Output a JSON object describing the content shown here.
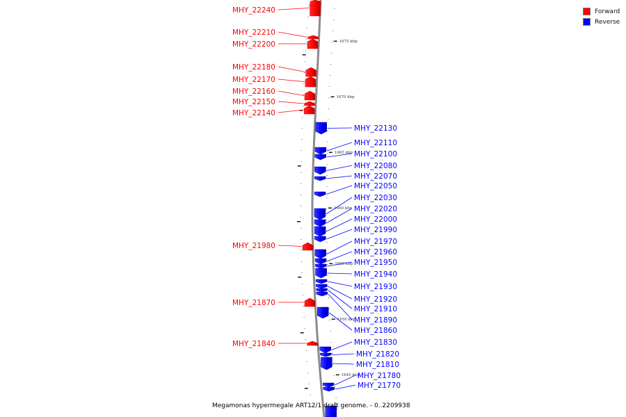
{
  "legend": {
    "items": [
      {
        "label": "Forward",
        "color": "#ff0000"
      },
      {
        "label": "Reverse",
        "color": "#0000ff"
      }
    ]
  },
  "caption": "Megamonas hypermegale ART12/1 draft genome. - 0..2209938",
  "colors": {
    "forward": "#ff0000",
    "reverse": "#0000ff",
    "backbone": "#777777"
  },
  "ticks": [
    "1675 kbp",
    "1670 kbp",
    "1665 kbp",
    "1660 kbp",
    "1655 kbp",
    "1650 kbp",
    "1645 kbp"
  ],
  "genes": [
    {
      "id": "MHY_22240",
      "strand": "forward"
    },
    {
      "id": "MHY_22210",
      "strand": "forward"
    },
    {
      "id": "MHY_22200",
      "strand": "forward"
    },
    {
      "id": "MHY_22180",
      "strand": "forward"
    },
    {
      "id": "MHY_22170",
      "strand": "forward"
    },
    {
      "id": "MHY_22160",
      "strand": "forward"
    },
    {
      "id": "MHY_22150",
      "strand": "forward"
    },
    {
      "id": "MHY_22140",
      "strand": "forward"
    },
    {
      "id": "MHY_22130",
      "strand": "reverse"
    },
    {
      "id": "MHY_22110",
      "strand": "reverse"
    },
    {
      "id": "MHY_22100",
      "strand": "reverse"
    },
    {
      "id": "MHY_22080",
      "strand": "reverse"
    },
    {
      "id": "MHY_22070",
      "strand": "reverse"
    },
    {
      "id": "MHY_22050",
      "strand": "reverse"
    },
    {
      "id": "MHY_22030",
      "strand": "reverse"
    },
    {
      "id": "MHY_22020",
      "strand": "reverse"
    },
    {
      "id": "MHY_22000",
      "strand": "reverse"
    },
    {
      "id": "MHY_21990",
      "strand": "reverse"
    },
    {
      "id": "MHY_21980",
      "strand": "forward"
    },
    {
      "id": "MHY_21970",
      "strand": "reverse"
    },
    {
      "id": "MHY_21960",
      "strand": "reverse"
    },
    {
      "id": "MHY_21950",
      "strand": "reverse"
    },
    {
      "id": "MHY_21940",
      "strand": "reverse"
    },
    {
      "id": "MHY_21930",
      "strand": "reverse"
    },
    {
      "id": "MHY_21920",
      "strand": "reverse"
    },
    {
      "id": "MHY_21910",
      "strand": "reverse"
    },
    {
      "id": "MHY_21890",
      "strand": "reverse"
    },
    {
      "id": "MHY_21870",
      "strand": "forward"
    },
    {
      "id": "MHY_21860",
      "strand": "reverse"
    },
    {
      "id": "MHY_21840",
      "strand": "forward"
    },
    {
      "id": "MHY_21830",
      "strand": "reverse"
    },
    {
      "id": "MHY_21820",
      "strand": "reverse"
    },
    {
      "id": "MHY_21810",
      "strand": "reverse"
    },
    {
      "id": "MHY_21780",
      "strand": "reverse"
    },
    {
      "id": "MHY_21770",
      "strand": "reverse"
    }
  ]
}
